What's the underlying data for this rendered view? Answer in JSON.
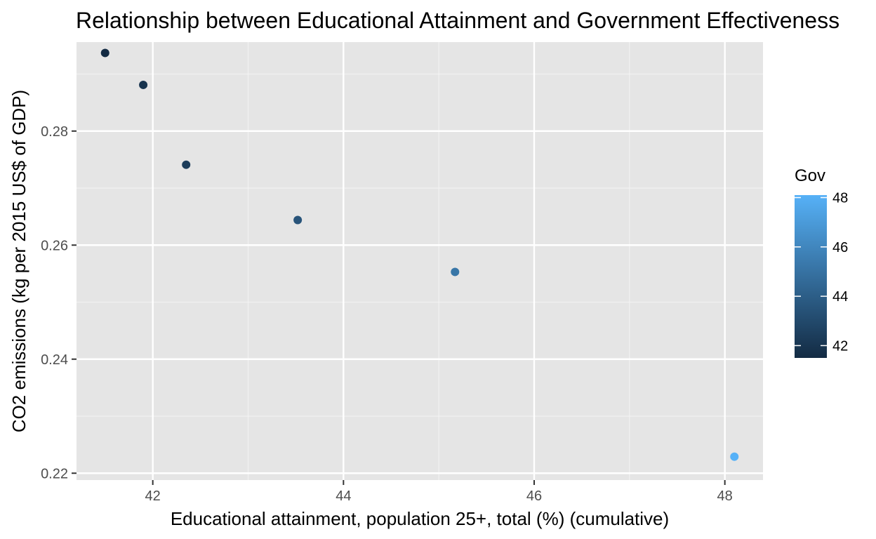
{
  "chart_data": {
    "type": "scatter",
    "title": "Relationship between Educational Attainment and Government Effectiveness",
    "xlabel": "Educational attainment, population 25+, total (%) (cumulative)",
    "ylabel": "CO2 emissions (kg per 2015 US$ of GDP)",
    "xlim": [
      41.2,
      48.4
    ],
    "ylim": [
      0.2188,
      0.2956
    ],
    "xticks": [
      42,
      44,
      46,
      48
    ],
    "yticks": [
      0.22,
      0.24,
      0.26,
      0.28
    ],
    "grid": true,
    "legend": {
      "title": "Gov",
      "placement": "right",
      "range": [
        41.5,
        48.1
      ],
      "ticks": [
        42,
        44,
        46,
        48
      ],
      "color_low": "#132B43",
      "color_high": "#56B1F7"
    },
    "points": [
      {
        "x": 41.5,
        "y": 0.2937,
        "gov": 41.5
      },
      {
        "x": 41.9,
        "y": 0.2881,
        "gov": 41.9
      },
      {
        "x": 42.35,
        "y": 0.2741,
        "gov": 42.35
      },
      {
        "x": 43.52,
        "y": 0.2644,
        "gov": 43.52
      },
      {
        "x": 45.17,
        "y": 0.2553,
        "gov": 45.17
      },
      {
        "x": 48.1,
        "y": 0.2229,
        "gov": 48.1
      }
    ]
  }
}
